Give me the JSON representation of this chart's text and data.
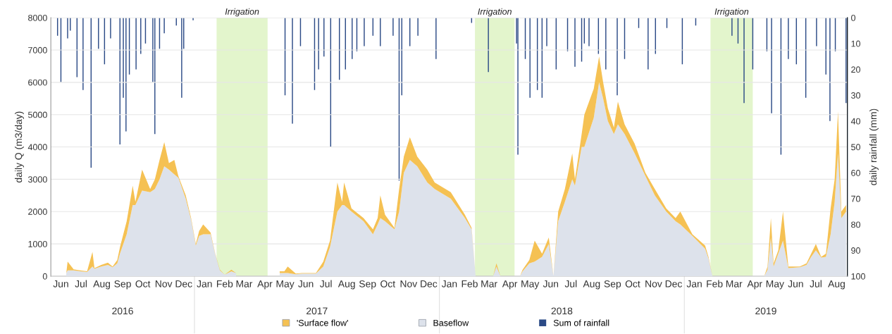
{
  "chart_data": {
    "type": "area",
    "stacked": true,
    "ylabel": "daily Q (m3/day)",
    "y2label": "daily rainfall (mm)",
    "xlim": [
      "2016-06-01",
      "2019-09-01"
    ],
    "xticks": [
      {
        "value": "2016-06-16",
        "label": "Jun"
      },
      {
        "value": "2016-07-16",
        "label": "Jul"
      },
      {
        "value": "2016-08-16",
        "label": "Aug"
      },
      {
        "value": "2016-09-16",
        "label": "Sep"
      },
      {
        "value": "2016-10-16",
        "label": "Oct"
      },
      {
        "value": "2016-11-16",
        "label": "Nov"
      },
      {
        "value": "2016-12-16",
        "label": "Dec"
      },
      {
        "value": "2017-01-16",
        "label": "Jan"
      },
      {
        "value": "2017-02-15",
        "label": "Feb"
      },
      {
        "value": "2017-03-16",
        "label": "Mar"
      },
      {
        "value": "2017-04-16",
        "label": "Apr"
      },
      {
        "value": "2017-05-16",
        "label": "May"
      },
      {
        "value": "2017-06-16",
        "label": "Jun"
      },
      {
        "value": "2017-07-16",
        "label": "Jul"
      },
      {
        "value": "2017-08-16",
        "label": "Aug"
      },
      {
        "value": "2017-09-16",
        "label": "Sep"
      },
      {
        "value": "2017-10-16",
        "label": "Oct"
      },
      {
        "value": "2017-11-16",
        "label": "Nov"
      },
      {
        "value": "2017-12-16",
        "label": "Dec"
      },
      {
        "value": "2018-01-16",
        "label": "Jan"
      },
      {
        "value": "2018-02-15",
        "label": "Feb"
      },
      {
        "value": "2018-03-16",
        "label": "Mar"
      },
      {
        "value": "2018-04-16",
        "label": "Apr"
      },
      {
        "value": "2018-05-16",
        "label": "May"
      },
      {
        "value": "2018-06-16",
        "label": "Jun"
      },
      {
        "value": "2018-07-16",
        "label": "Jul"
      },
      {
        "value": "2018-08-16",
        "label": "Aug"
      },
      {
        "value": "2018-09-16",
        "label": "Sep"
      },
      {
        "value": "2018-10-16",
        "label": "Oct"
      },
      {
        "value": "2018-11-16",
        "label": "Nov"
      },
      {
        "value": "2018-12-16",
        "label": "Dec"
      },
      {
        "value": "2019-01-16",
        "label": "Jan"
      },
      {
        "value": "2019-02-15",
        "label": "Feb"
      },
      {
        "value": "2019-03-16",
        "label": "Mar"
      },
      {
        "value": "2019-04-16",
        "label": "Apr"
      },
      {
        "value": "2019-05-16",
        "label": "May"
      },
      {
        "value": "2019-06-16",
        "label": "Jun"
      },
      {
        "value": "2019-07-16",
        "label": "Jul"
      },
      {
        "value": "2019-08-16",
        "label": "Aug"
      }
    ],
    "annotations": [
      "2016",
      "2017",
      "2018",
      "2019"
    ],
    "ylim": [
      0,
      8000
    ],
    "yticks": [
      0,
      1000,
      2000,
      3000,
      4000,
      5000,
      6000,
      7000,
      8000
    ],
    "y2lim": [
      100,
      0
    ],
    "y2ticks": [
      0,
      10,
      20,
      30,
      40,
      50,
      60,
      70,
      80,
      90,
      100
    ],
    "grid": "y",
    "legend": "bottom",
    "bands": [
      {
        "axis": "x",
        "from": "2017-02-03",
        "to": "2017-04-20",
        "label": "Irrigation",
        "color": "#e3f5cc"
      },
      {
        "axis": "x",
        "from": "2018-02-23",
        "to": "2018-04-23",
        "label": "Irrigation",
        "color": "#e3f5cc"
      },
      {
        "axis": "x",
        "from": "2019-02-09",
        "to": "2019-04-13",
        "label": "Irrigation",
        "color": "#e3f5cc"
      }
    ],
    "x": [
      "2016-06-24",
      "2016-06-26",
      "2016-07-05",
      "2016-07-15",
      "2016-07-25",
      "2016-08-02",
      "2016-08-05",
      "2016-08-15",
      "2016-08-25",
      "2016-09-01",
      "2016-09-08",
      "2016-09-12",
      "2016-09-22",
      "2016-10-01",
      "2016-10-05",
      "2016-10-15",
      "2016-10-27",
      "2016-11-03",
      "2016-11-10",
      "2016-11-17",
      "2016-11-24",
      "2016-12-02",
      "2016-12-08",
      "2016-12-19",
      "2016-12-27",
      "2017-01-03",
      "2017-01-08",
      "2017-01-14",
      "2017-01-25",
      "2017-02-01",
      "2017-02-08",
      "2017-02-15",
      "2017-02-25",
      "2017-03-04",
      "2017-03-06",
      "2017-05-08",
      "2017-05-15",
      "2017-05-20",
      "2017-06-01",
      "2017-06-10",
      "2017-07-01",
      "2017-07-12",
      "2017-07-22",
      "2017-08-02",
      "2017-08-09",
      "2017-08-12",
      "2017-08-23",
      "2017-09-10",
      "2017-09-24",
      "2017-10-01",
      "2017-10-05",
      "2017-10-12",
      "2017-10-26",
      "2017-11-02",
      "2017-11-09",
      "2017-11-18",
      "2017-11-29",
      "2017-12-14",
      "2017-12-25",
      "2018-01-18",
      "2018-02-08",
      "2018-02-18",
      "2018-02-24",
      "2018-03-22",
      "2018-03-27",
      "2018-04-02",
      "2018-04-03",
      "2018-05-01",
      "2018-05-05",
      "2018-05-15",
      "2018-05-23",
      "2018-06-03",
      "2018-06-13",
      "2018-06-20",
      "2018-06-27",
      "2018-07-07",
      "2018-07-18",
      "2018-07-22",
      "2018-08-01",
      "2018-08-05",
      "2018-08-19",
      "2018-08-27",
      "2018-09-02",
      "2018-09-09",
      "2018-09-18",
      "2018-09-24",
      "2018-10-04",
      "2018-10-19",
      "2018-11-04",
      "2018-11-18",
      "2018-12-05",
      "2018-12-19",
      "2018-12-26",
      "2019-01-13",
      "2019-02-01",
      "2019-02-06",
      "2019-02-12",
      "2019-02-13",
      "2019-04-30",
      "2019-05-05",
      "2019-05-10",
      "2019-05-14",
      "2019-05-21",
      "2019-05-28",
      "2019-06-05",
      "2019-06-22",
      "2019-07-02",
      "2019-07-09",
      "2019-07-16",
      "2019-07-24",
      "2019-07-31",
      "2019-08-07",
      "2019-08-13",
      "2019-08-18",
      "2019-08-23",
      "2019-08-30"
    ],
    "series": [
      {
        "name": "Baseflow",
        "color": "#dde2eb",
        "values": [
          100,
          180,
          180,
          150,
          130,
          300,
          230,
          300,
          350,
          280,
          400,
          700,
          1300,
          2200,
          2200,
          2650,
          2600,
          2700,
          3000,
          3400,
          3300,
          3150,
          3050,
          2400,
          1750,
          950,
          1250,
          1300,
          1300,
          680,
          180,
          50,
          150,
          100,
          null,
          100,
          100,
          100,
          60,
          80,
          80,
          300,
          900,
          2000,
          2200,
          2200,
          2000,
          1700,
          1300,
          1600,
          1800,
          1700,
          1450,
          2000,
          3200,
          3600,
          3400,
          2900,
          2700,
          2400,
          1800,
          1450,
          0,
          0,
          300,
          0,
          null,
          0,
          150,
          400,
          450,
          600,
          1000,
          0,
          1700,
          2300,
          3000,
          2800,
          4000,
          4000,
          4900,
          6000,
          5500,
          4800,
          4400,
          4700,
          4400,
          3800,
          3100,
          2500,
          2000,
          1700,
          1600,
          1250,
          850,
          550,
          0,
          null,
          0,
          200,
          1200,
          300,
          700,
          1100,
          250,
          280,
          350,
          600,
          800,
          580,
          600,
          1300,
          2300,
          3800,
          1800,
          2000
        ]
      },
      {
        "name": "'Surface flow'",
        "color": "#f5c153",
        "values": [
          0,
          270,
          30,
          30,
          20,
          450,
          20,
          50,
          70,
          20,
          100,
          200,
          400,
          600,
          100,
          650,
          100,
          300,
          600,
          750,
          200,
          450,
          50,
          100,
          50,
          50,
          150,
          300,
          50,
          20,
          20,
          0,
          50,
          0,
          null,
          50,
          50,
          200,
          20,
          20,
          20,
          150,
          200,
          900,
          100,
          700,
          100,
          100,
          150,
          200,
          700,
          200,
          50,
          700,
          500,
          700,
          300,
          400,
          200,
          200,
          100,
          50,
          0,
          0,
          100,
          0,
          null,
          0,
          50,
          100,
          650,
          100,
          200,
          0,
          300,
          400,
          800,
          200,
          400,
          1000,
          900,
          800,
          500,
          400,
          200,
          700,
          300,
          300,
          100,
          200,
          100,
          100,
          400,
          50,
          100,
          50,
          0,
          null,
          0,
          100,
          600,
          100,
          100,
          900,
          50,
          20,
          50,
          100,
          200,
          20,
          100,
          800,
          700,
          1300,
          200,
          200
        ]
      },
      {
        "name": "Sum of rainfall",
        "type": "bar",
        "axis": "y2",
        "color": "#2b4a86",
        "x": [
          "2016-06-11",
          "2016-06-16",
          "2016-06-26",
          "2016-06-30",
          "2016-07-10",
          "2016-07-19",
          "2016-07-31",
          "2016-08-11",
          "2016-08-20",
          "2016-08-29",
          "2016-09-12",
          "2016-09-17",
          "2016-09-21",
          "2016-09-26",
          "2016-10-06",
          "2016-10-13",
          "2016-10-20",
          "2016-10-31",
          "2016-11-03",
          "2016-11-10",
          "2016-11-17",
          "2016-12-05",
          "2016-12-13",
          "2016-12-16",
          "2016-12-30",
          "2017-05-16",
          "2017-05-27",
          "2017-06-08",
          "2017-06-29",
          "2017-07-05",
          "2017-07-13",
          "2017-07-23",
          "2017-08-05",
          "2017-08-14",
          "2017-08-24",
          "2017-08-31",
          "2017-09-11",
          "2017-09-24",
          "2017-10-05",
          "2017-10-24",
          "2017-11-02",
          "2017-11-06",
          "2017-11-18",
          "2017-11-30",
          "2017-12-27",
          "2018-02-18",
          "2018-03-15",
          "2018-04-26",
          "2018-04-28",
          "2018-05-09",
          "2018-05-16",
          "2018-05-27",
          "2018-06-03",
          "2018-06-10",
          "2018-06-24",
          "2018-07-11",
          "2018-07-22",
          "2018-08-01",
          "2018-08-05",
          "2018-08-12",
          "2018-08-26",
          "2018-09-06",
          "2018-09-23",
          "2018-10-04",
          "2018-10-25",
          "2018-11-08",
          "2018-11-19",
          "2018-12-06",
          "2018-12-29",
          "2019-01-18",
          "2019-03-13",
          "2019-03-22",
          "2019-03-31",
          "2019-04-13",
          "2019-05-04",
          "2019-05-11",
          "2019-05-25",
          "2019-06-05",
          "2019-06-17",
          "2019-07-01",
          "2019-07-17",
          "2019-07-31",
          "2019-08-06",
          "2019-08-14",
          "2019-08-30"
        ],
        "values": [
          7,
          25,
          8,
          5,
          23,
          28,
          58,
          12,
          18,
          8,
          49,
          31,
          44,
          22,
          20,
          14,
          10,
          25,
          45,
          12,
          6,
          3,
          31,
          12,
          1,
          30,
          41,
          11,
          28,
          20,
          15,
          50,
          24,
          20,
          16,
          13,
          11,
          7,
          11,
          7,
          63,
          30,
          11,
          7,
          16,
          2,
          21,
          10,
          53,
          16,
          31,
          28,
          31,
          11,
          20,
          13,
          19,
          17,
          10,
          11,
          14,
          20,
          30,
          16,
          4,
          20,
          14,
          4,
          18,
          3,
          7,
          10,
          33,
          20,
          13,
          37,
          53,
          16,
          18,
          31,
          11,
          22,
          40,
          13,
          33
        ]
      }
    ]
  }
}
